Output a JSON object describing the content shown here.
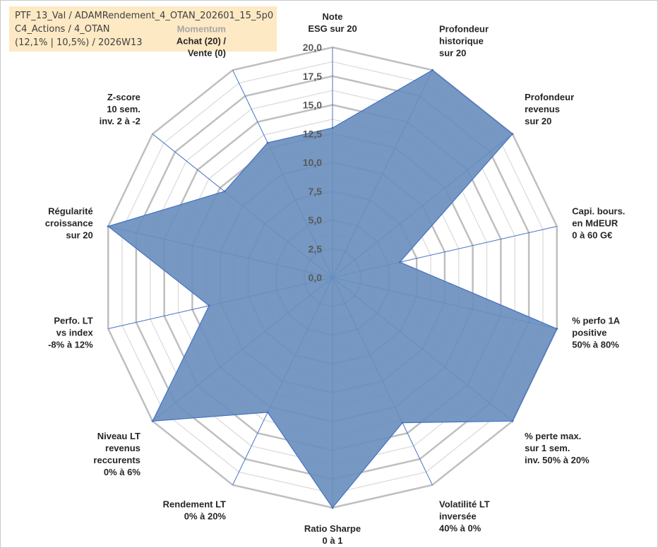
{
  "header": {
    "line1": "PTF_13_Val / ADAMRendement_4_OTAN_202601_15_5p0",
    "line2": "C4_Actions / 4_OTAN",
    "line3": "(12,1% | 10,5%) / 2026W13"
  },
  "colors": {
    "fill": "#6a8fbd",
    "stroke": "#4472c4",
    "grid_major": "#bfbfbf",
    "grid_minor": "#d9d9d9",
    "info_bg": "#fde9c4"
  },
  "chart_data": {
    "type": "radar",
    "title": "",
    "rmin": 0,
    "rmax": 20,
    "ticks": [
      "0,0",
      "2,5",
      "5,0",
      "7,5",
      "10,0",
      "12,5",
      "15,0",
      "17,5",
      "20,0"
    ],
    "axes": [
      {
        "label": [
          "Note",
          "ESG sur 20"
        ],
        "value": 13
      },
      {
        "label": [
          "Profondeur",
          "historique",
          "sur 20"
        ],
        "value": 20
      },
      {
        "label": [
          "Profondeur",
          "revenus",
          "sur 20"
        ],
        "value": 20
      },
      {
        "label": [
          "Capi. bours.",
          "en MdEUR",
          "0 à 60 G€"
        ],
        "value": 6
      },
      {
        "label": [
          "% perfo 1A",
          "positive",
          "50% à 80%"
        ],
        "value": 20
      },
      {
        "label": [
          "% perte max.",
          "sur 1 sem.",
          "inv. 50% à 20%"
        ],
        "value": 20
      },
      {
        "label": [
          "Volatilité LT",
          "inversée",
          "40% à 0%"
        ],
        "value": 14
      },
      {
        "label": [
          "Ratio Sharpe",
          "0 à 1"
        ],
        "value": 20
      },
      {
        "label": [
          "Rendement LT",
          "0% à 20%"
        ],
        "value": 13
      },
      {
        "label": [
          "Niveau LT",
          "revenus",
          "reccurents",
          "0% à 6%"
        ],
        "value": 20
      },
      {
        "label": [
          "Perfo. LT",
          "vs index",
          "-8% à 12%"
        ],
        "value": 11
      },
      {
        "label": [
          "Régularité",
          "croissance",
          "sur 20"
        ],
        "value": 20
      },
      {
        "label": [
          "Z-score",
          "10 sem.",
          "inv. 2 à -2"
        ],
        "value": 12
      },
      {
        "label": [
          "Momentum",
          "Achat (20) /",
          "Vente (0)"
        ],
        "value": 13
      }
    ]
  }
}
